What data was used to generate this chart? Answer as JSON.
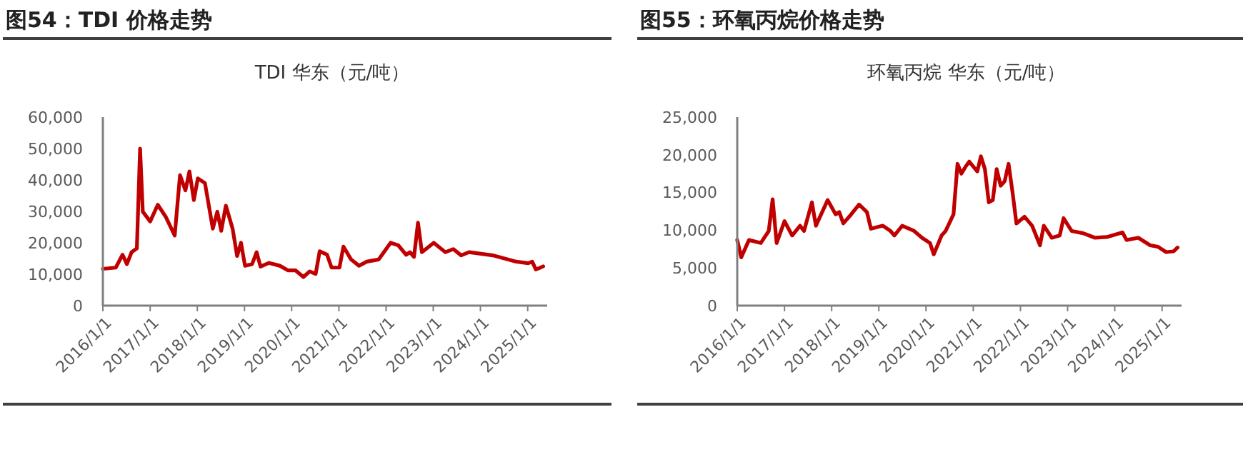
{
  "chart_data": [
    {
      "type": "line",
      "title": "图54：TDI 价格走势",
      "subtitle": "TDI 华东（元/吨）",
      "xlim": [
        "2016-01-01",
        "2025-06-01"
      ],
      "ylim": [
        0,
        60000
      ],
      "yticks": [
        {
          "value": 0,
          "label": "0"
        },
        {
          "value": 10000,
          "label": "10,000"
        },
        {
          "value": 20000,
          "label": "20,000"
        },
        {
          "value": 30000,
          "label": "30,000"
        },
        {
          "value": 40000,
          "label": "40,000"
        },
        {
          "value": 50000,
          "label": "50,000"
        },
        {
          "value": 60000,
          "label": "60,000"
        }
      ],
      "xticks": [
        {
          "value": "2016-01-01",
          "label": "2016/1/1"
        },
        {
          "value": "2017-01-01",
          "label": "2017/1/1"
        },
        {
          "value": "2018-01-01",
          "label": "2018/1/1"
        },
        {
          "value": "2019-01-01",
          "label": "2019/1/1"
        },
        {
          "value": "2020-01-01",
          "label": "2020/1/1"
        },
        {
          "value": "2021-01-01",
          "label": "2021/1/1"
        },
        {
          "value": "2022-01-01",
          "label": "2022/1/1"
        },
        {
          "value": "2023-01-01",
          "label": "2023/1/1"
        },
        {
          "value": "2024-01-01",
          "label": "2024/1/1"
        },
        {
          "value": "2025-01-01",
          "label": "2025/1/1"
        }
      ],
      "grid": false,
      "marker": "none",
      "line_style": "solid",
      "series": [
        {
          "color": "#c00000",
          "x": [
            "2016-01-01",
            "2016-04-10",
            "2016-06-01",
            "2016-07-05",
            "2016-08-10",
            "2016-09-20",
            "2016-10-15",
            "2016-11-05",
            "2017-01-01",
            "2017-03-01",
            "2017-05-01",
            "2017-07-10",
            "2017-08-20",
            "2017-10-01",
            "2017-11-01",
            "2017-12-05",
            "2018-01-05",
            "2018-03-01",
            "2018-05-01",
            "2018-06-05",
            "2018-07-05",
            "2018-08-10",
            "2018-10-01",
            "2018-11-05",
            "2018-12-05",
            "2019-01-05",
            "2019-03-01",
            "2019-04-05",
            "2019-05-05",
            "2019-07-10",
            "2019-10-01",
            "2019-12-05",
            "2020-02-01",
            "2020-04-01",
            "2020-05-20",
            "2020-07-05",
            "2020-08-05",
            "2020-10-01",
            "2020-11-05",
            "2021-01-05",
            "2021-02-05",
            "2021-04-05",
            "2021-06-05",
            "2021-08-05",
            "2021-11-05",
            "2022-02-05",
            "2022-04-05",
            "2022-06-05",
            "2022-07-05",
            "2022-08-05",
            "2022-09-05",
            "2022-10-05",
            "2023-01-05",
            "2023-04-05",
            "2023-06-05",
            "2023-08-05",
            "2023-10-05",
            "2024-01-05",
            "2024-04-05",
            "2024-07-05",
            "2024-10-05",
            "2025-01-05",
            "2025-02-05",
            "2025-03-05",
            "2025-04-05",
            "2025-05-01"
          ],
          "values": [
            11700,
            12100,
            16200,
            13200,
            17000,
            18200,
            50000,
            29900,
            26800,
            32100,
            28300,
            22300,
            41500,
            36700,
            42700,
            33600,
            40500,
            39000,
            24500,
            29900,
            23800,
            31800,
            24500,
            15800,
            20000,
            12700,
            13200,
            17000,
            12400,
            13600,
            12700,
            11200,
            11200,
            9100,
            10900,
            10100,
            17300,
            16200,
            12100,
            12100,
            18800,
            14700,
            12700,
            14000,
            14700,
            20000,
            19200,
            16200,
            17000,
            15500,
            26400,
            17000,
            20000,
            17000,
            18000,
            16000,
            17000,
            16500,
            16000,
            15000,
            14000,
            13500,
            14000,
            11500,
            12000,
            12500
          ]
        }
      ]
    },
    {
      "type": "line",
      "title": "图55：环氧丙烷价格走势",
      "subtitle": "环氧丙烷 华东（元/吨）",
      "xlim": [
        "2016-01-01",
        "2025-06-01"
      ],
      "ylim": [
        0,
        25000
      ],
      "yticks": [
        {
          "value": 0,
          "label": "0"
        },
        {
          "value": 5000,
          "label": "5,000"
        },
        {
          "value": 10000,
          "label": "10,000"
        },
        {
          "value": 15000,
          "label": "15,000"
        },
        {
          "value": 20000,
          "label": "20,000"
        },
        {
          "value": 25000,
          "label": "25,000"
        }
      ],
      "xticks": [
        {
          "value": "2016-01-01",
          "label": "2016/1/1"
        },
        {
          "value": "2017-01-01",
          "label": "2017/1/1"
        },
        {
          "value": "2018-01-01",
          "label": "2018/1/1"
        },
        {
          "value": "2019-01-01",
          "label": "2019/1/1"
        },
        {
          "value": "2020-01-01",
          "label": "2020/1/1"
        },
        {
          "value": "2021-01-01",
          "label": "2021/1/1"
        },
        {
          "value": "2022-01-01",
          "label": "2022/1/1"
        },
        {
          "value": "2023-01-01",
          "label": "2023/1/1"
        },
        {
          "value": "2024-01-01",
          "label": "2024/1/1"
        },
        {
          "value": "2025-01-01",
          "label": "2025/1/1"
        }
      ],
      "grid": false,
      "marker": "none",
      "line_style": "solid",
      "series": [
        {
          "color": "#c00000",
          "x": [
            "2016-01-01",
            "2016-02-01",
            "2016-04-01",
            "2016-07-01",
            "2016-09-01",
            "2016-10-01",
            "2016-11-01",
            "2017-01-01",
            "2017-03-01",
            "2017-05-01",
            "2017-06-01",
            "2017-08-01",
            "2017-09-01",
            "2017-12-01",
            "2018-02-01",
            "2018-03-01",
            "2018-04-01",
            "2018-06-01",
            "2018-08-01",
            "2018-10-01",
            "2018-11-01",
            "2019-02-01",
            "2019-04-01",
            "2019-05-01",
            "2019-07-01",
            "2019-10-01",
            "2019-12-01",
            "2020-02-01",
            "2020-03-01",
            "2020-05-01",
            "2020-06-01",
            "2020-08-01",
            "2020-09-01",
            "2020-10-01",
            "2020-11-01",
            "2020-12-01",
            "2021-02-01",
            "2021-03-01",
            "2021-04-01",
            "2021-05-01",
            "2021-06-01",
            "2021-07-01",
            "2021-08-01",
            "2021-09-01",
            "2021-10-01",
            "2021-11-01",
            "2021-12-01",
            "2022-02-01",
            "2022-04-01",
            "2022-06-01",
            "2022-07-01",
            "2022-09-01",
            "2022-11-01",
            "2022-12-01",
            "2023-02-01",
            "2023-05-01",
            "2023-08-01",
            "2023-11-01",
            "2024-03-01",
            "2024-04-01",
            "2024-07-01",
            "2024-10-01",
            "2024-12-01",
            "2025-02-01",
            "2025-04-01",
            "2025-05-01"
          ],
          "values": [
            8700,
            6400,
            8700,
            8300,
            9900,
            14100,
            8300,
            11200,
            9300,
            10600,
            9900,
            13700,
            10600,
            14000,
            12100,
            12400,
            10900,
            12100,
            13400,
            12400,
            10200,
            10600,
            9900,
            9300,
            10600,
            9900,
            9000,
            8300,
            6800,
            9300,
            9900,
            12100,
            18800,
            17500,
            18400,
            19100,
            17800,
            19800,
            18100,
            13700,
            14000,
            18100,
            15900,
            16500,
            18800,
            15000,
            10900,
            11800,
            10600,
            8000,
            10600,
            9000,
            9300,
            11600,
            9900,
            9600,
            9000,
            9100,
            9700,
            8700,
            9000,
            8000,
            7800,
            7100,
            7200,
            7700
          ]
        }
      ]
    }
  ]
}
